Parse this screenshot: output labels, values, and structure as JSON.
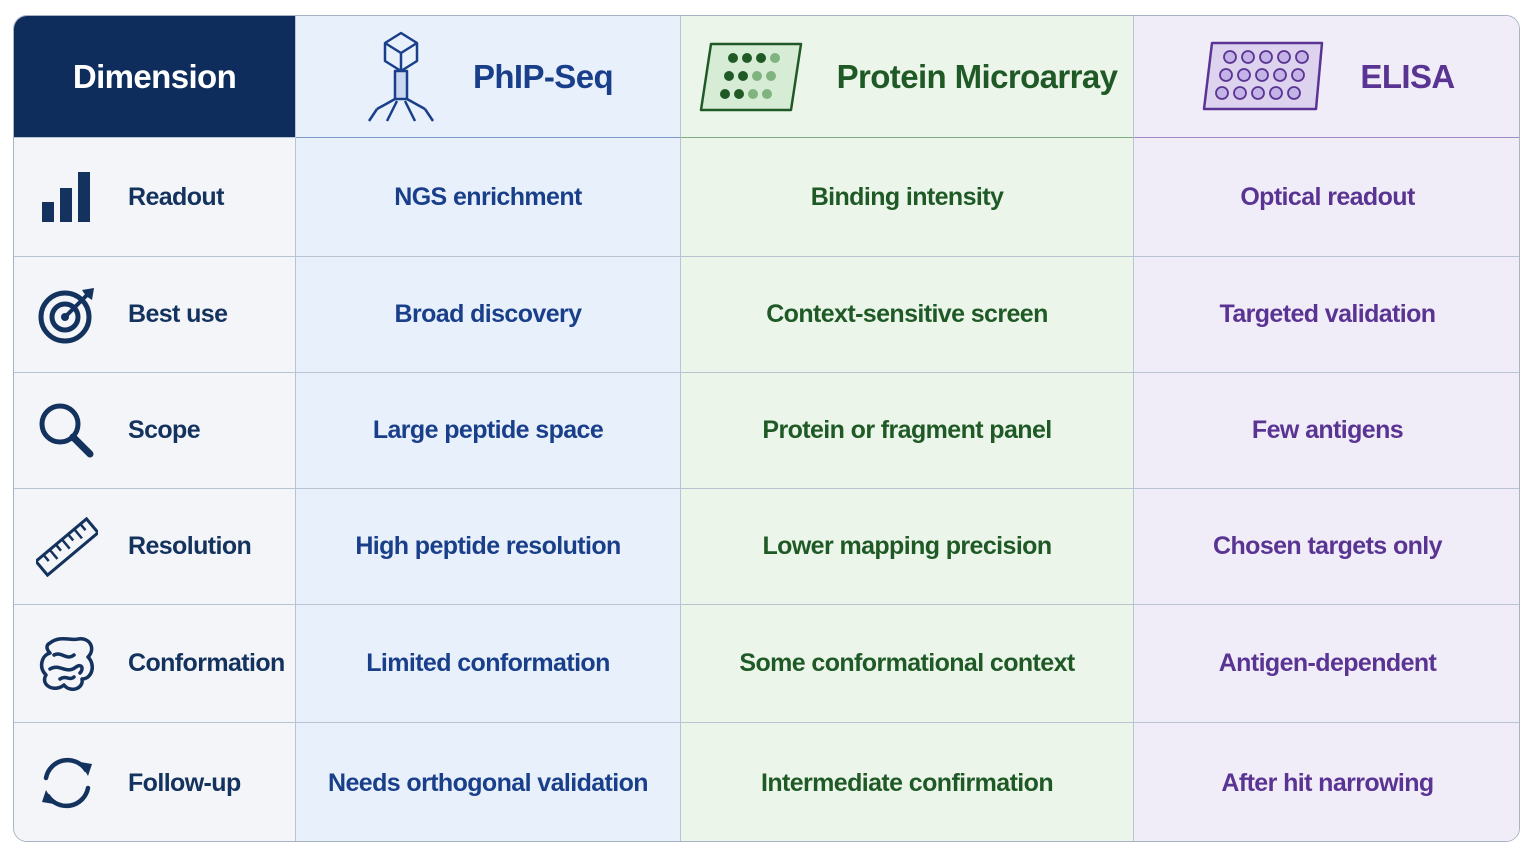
{
  "table": {
    "header": [
      "Dimension",
      "PhIP-Seq",
      "Protein Microarray",
      "ELISA"
    ],
    "rows": [
      [
        "Readout",
        "NGS enrichment",
        "Binding intensity",
        "Optical readout"
      ],
      [
        "Best use",
        "Broad discovery",
        "Context-sensitive screen",
        "Targeted validation"
      ],
      [
        "Scope",
        "Large peptide space",
        "Protein or fragment panel",
        "Few antigens"
      ],
      [
        "Resolution",
        "High peptide resolution",
        "Lower mapping precision",
        "Chosen targets only"
      ],
      [
        "Conformation",
        "Limited conformation",
        "Some conformational context",
        "Antigen-dependent"
      ],
      [
        "Follow-up",
        "Needs orthogonal validation",
        "Intermediate confirmation",
        "After hit narrowing"
      ]
    ]
  }
}
